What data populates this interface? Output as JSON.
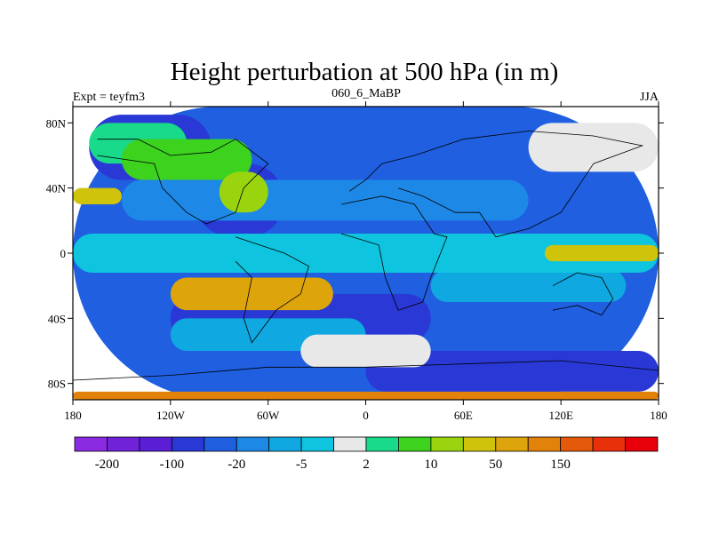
{
  "chart_data": {
    "type": "heatmap",
    "title": "Height perturbation at 500 hPa (in m)",
    "left_label": "Expt = teyfm3",
    "center_label": "060_6_MaBP",
    "right_label": "JJA",
    "units": "m",
    "xlim": [
      -180,
      180
    ],
    "ylim": [
      -90,
      90
    ],
    "x_ticks": [
      {
        "value": -180,
        "label": "180"
      },
      {
        "value": -120,
        "label": "120W"
      },
      {
        "value": -60,
        "label": "60W"
      },
      {
        "value": 0,
        "label": "0"
      },
      {
        "value": 60,
        "label": "60E"
      },
      {
        "value": 120,
        "label": "120E"
      },
      {
        "value": 180,
        "label": "180"
      }
    ],
    "y_ticks": [
      {
        "value": 80,
        "label": "80N"
      },
      {
        "value": 40,
        "label": "40N"
      },
      {
        "value": 0,
        "label": "0"
      },
      {
        "value": -40,
        "label": "40S"
      },
      {
        "value": -80,
        "label": "80S"
      }
    ],
    "colorbar": {
      "colors": [
        "#8a2be2",
        "#7022d8",
        "#5a1fd4",
        "#2a38d6",
        "#1f5fe0",
        "#1e88e6",
        "#10a8e0",
        "#0ec4de",
        "#e8e8e8",
        "#19d98a",
        "#3cd21e",
        "#9ad40e",
        "#d0c30c",
        "#dda40c",
        "#e3820a",
        "#e45a0a",
        "#e8300a",
        "#e8000a"
      ],
      "labels": [
        {
          "index": 1,
          "text": "-200"
        },
        {
          "index": 3,
          "text": "-100"
        },
        {
          "index": 5,
          "text": "-20"
        },
        {
          "index": 7,
          "text": "-5"
        },
        {
          "index": 9,
          "text": "2"
        },
        {
          "index": 11,
          "text": "10"
        },
        {
          "index": 13,
          "text": "50"
        },
        {
          "index": 15,
          "text": "150"
        }
      ]
    },
    "regions": [
      {
        "level": 4,
        "lon": [
          -180,
          180
        ],
        "lat": [
          -90,
          90
        ]
      },
      {
        "level": 3,
        "lon": [
          -170,
          -95
        ],
        "lat": [
          45,
          85
        ]
      },
      {
        "level": 3,
        "lon": [
          -105,
          -50
        ],
        "lat": [
          10,
          55
        ]
      },
      {
        "level": 4,
        "lon": [
          -55,
          60
        ],
        "lat": [
          -10,
          40
        ]
      },
      {
        "level": 3,
        "lon": [
          -120,
          40
        ],
        "lat": [
          -55,
          -25
        ]
      },
      {
        "level": 3,
        "lon": [
          0,
          180
        ],
        "lat": [
          -85,
          -60
        ]
      },
      {
        "level": 5,
        "lon": [
          -150,
          100
        ],
        "lat": [
          20,
          45
        ]
      },
      {
        "level": 6,
        "lon": [
          -120,
          0
        ],
        "lat": [
          -60,
          -40
        ]
      },
      {
        "level": 6,
        "lon": [
          40,
          160
        ],
        "lat": [
          -30,
          -10
        ]
      },
      {
        "level": 7,
        "lon": [
          -180,
          180
        ],
        "lat": [
          -12,
          12
        ]
      },
      {
        "level": 8,
        "lon": [
          100,
          180
        ],
        "lat": [
          50,
          80
        ]
      },
      {
        "level": 8,
        "lon": [
          -40,
          40
        ],
        "lat": [
          -70,
          -50
        ]
      },
      {
        "level": 9,
        "lon": [
          -170,
          -110
        ],
        "lat": [
          55,
          80
        ]
      },
      {
        "level": 10,
        "lon": [
          -150,
          -70
        ],
        "lat": [
          45,
          70
        ]
      },
      {
        "level": 11,
        "lon": [
          -90,
          -60
        ],
        "lat": [
          25,
          50
        ]
      },
      {
        "level": 12,
        "lon": [
          -180,
          -150
        ],
        "lat": [
          30,
          40
        ]
      },
      {
        "level": 12,
        "lon": [
          110,
          180
        ],
        "lat": [
          -5,
          5
        ]
      },
      {
        "level": 13,
        "lon": [
          -120,
          -20
        ],
        "lat": [
          -35,
          -15
        ]
      },
      {
        "level": 14,
        "lon": [
          -180,
          180
        ],
        "lat": [
          -90,
          -85
        ]
      }
    ]
  }
}
